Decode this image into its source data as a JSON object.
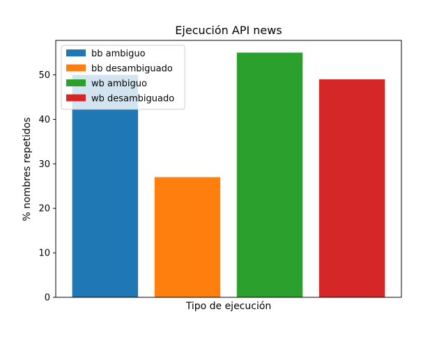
{
  "chart_data": {
    "type": "bar",
    "title": "Ejecución API news",
    "xlabel": "Tipo de ejecución",
    "ylabel": "% nombres repetidos",
    "ylim": [
      0,
      57.75
    ],
    "yticks": [
      0,
      10,
      20,
      30,
      40,
      50
    ],
    "categories": [
      "bb ambiguo",
      "bb desambiguado",
      "wb ambiguo",
      "wb desambiguado"
    ],
    "values": [
      50,
      27,
      55,
      49
    ],
    "colors": [
      "#1f77b4",
      "#ff7f0e",
      "#2ca02c",
      "#d62728"
    ],
    "legend": {
      "position": "top-left",
      "entries": [
        "bb ambiguo",
        "bb desambiguado",
        "wb ambiguo",
        "wb desambiguado"
      ]
    },
    "grid": false
  }
}
